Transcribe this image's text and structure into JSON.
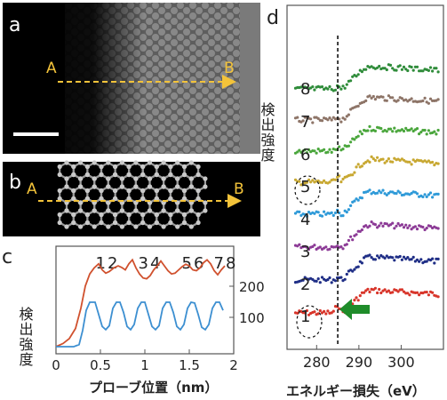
{
  "panels": {
    "a": {
      "letter": "a",
      "point_a": "A",
      "point_b": "B"
    },
    "b": {
      "letter": "b",
      "point_a": "A",
      "point_b": "B"
    },
    "c": {
      "letter": "c"
    },
    "d": {
      "letter": "d"
    }
  },
  "chart_data": [
    {
      "type": "line",
      "panel": "c",
      "xlabel": "プローブ位置（nm）",
      "ylabel": "検出強度",
      "xlim": [
        0,
        2
      ],
      "x_ticks": [
        "0",
        "0.5",
        "1",
        "1.5",
        "2"
      ],
      "y_right_ticks": [
        "200",
        "100"
      ],
      "annotations": [
        "12",
        "34",
        "56",
        "78"
      ],
      "series": [
        {
          "color": "#d0512e",
          "x": [
            0.0,
            0.08,
            0.15,
            0.22,
            0.28,
            0.33,
            0.38,
            0.43,
            0.48,
            0.52,
            0.56,
            0.6,
            0.65,
            0.7,
            0.74,
            0.78,
            0.82,
            0.86,
            0.9,
            0.94,
            0.98,
            1.02,
            1.06,
            1.1,
            1.14,
            1.18,
            1.22,
            1.26,
            1.3,
            1.34,
            1.38,
            1.42,
            1.46,
            1.5,
            1.54,
            1.58,
            1.62,
            1.66,
            1.7,
            1.74,
            1.78,
            1.82,
            1.86,
            1.9
          ],
          "y": [
            0,
            8,
            20,
            45,
            95,
            150,
            180,
            195,
            205,
            190,
            182,
            186,
            195,
            200,
            196,
            190,
            205,
            215,
            195,
            180,
            170,
            168,
            176,
            190,
            200,
            212,
            200,
            188,
            180,
            182,
            190,
            198,
            204,
            200,
            190,
            188,
            195,
            208,
            215,
            205,
            188,
            178,
            190,
            200
          ]
        },
        {
          "color": "#3c8fd1",
          "x": [
            0.0,
            0.1,
            0.2,
            0.26,
            0.3,
            0.34,
            0.38,
            0.44,
            0.48,
            0.52,
            0.56,
            0.6,
            0.64,
            0.68,
            0.72,
            0.76,
            0.8,
            0.84,
            0.88,
            0.92,
            0.96,
            1.0,
            1.04,
            1.08,
            1.12,
            1.16,
            1.2,
            1.24,
            1.28,
            1.32,
            1.36,
            1.4,
            1.44,
            1.48,
            1.52,
            1.56,
            1.6,
            1.64,
            1.68,
            1.72,
            1.76,
            1.8,
            1.84,
            1.88
          ],
          "y": [
            0,
            0,
            0,
            5,
            40,
            90,
            110,
            110,
            80,
            50,
            42,
            52,
            95,
            110,
            110,
            85,
            50,
            42,
            55,
            95,
            110,
            110,
            80,
            50,
            42,
            52,
            95,
            110,
            110,
            85,
            50,
            42,
            55,
            95,
            110,
            108,
            80,
            48,
            42,
            55,
            95,
            110,
            110,
            90
          ]
        }
      ]
    },
    {
      "type": "scatter",
      "panel": "d",
      "xlabel": "エネルギー損失（eV）",
      "ylabel": "検出強度",
      "xlim": [
        273,
        310
      ],
      "x_ticks": [
        "280",
        "290",
        "300"
      ],
      "dashed_line_x": 285,
      "series_labels": [
        "1",
        "2",
        "3",
        "4",
        "5",
        "6",
        "7",
        "8"
      ],
      "series_colors": [
        "#d8352a",
        "#1f2e86",
        "#8c3a96",
        "#2f9ad8",
        "#c8a832",
        "#4aa63c",
        "#8d7467",
        "#2f8c3a"
      ],
      "arrow_color": "#1f8c2a"
    }
  ]
}
